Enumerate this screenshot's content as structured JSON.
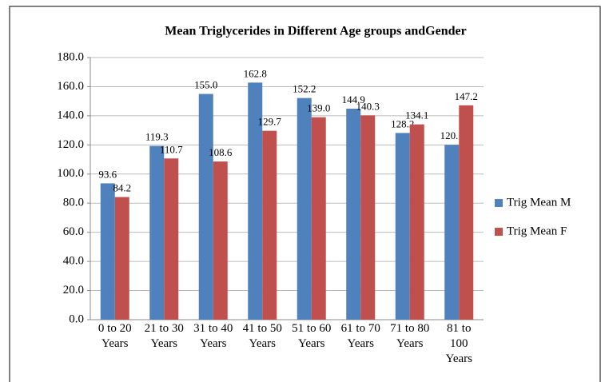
{
  "chart_data": {
    "type": "bar",
    "title": "Mean Triglycerides  in Different Age groups andGender",
    "categories": [
      "0  to 20 Years",
      "21  to 30 Years",
      "31  to 40 Years",
      "41  to 50 Years",
      "51  to 60 Years",
      "61  to 70 Years",
      "71  to 80 Years",
      "81  to 100 Years"
    ],
    "series": [
      {
        "name": "Trig Mean M",
        "color": "#4f81bd",
        "values": [
          93.6,
          119.3,
          155.0,
          162.8,
          152.2,
          144.9,
          128.2,
          120.1
        ],
        "value_labels": [
          "93.6",
          "119.3",
          "155.0",
          "162.8",
          "152.2",
          "144.9",
          "128.2",
          "120.1"
        ]
      },
      {
        "name": "Trig Mean F",
        "color": "#c0504d",
        "values": [
          84.2,
          110.7,
          108.6,
          129.7,
          139.0,
          140.3,
          134.1,
          147.2
        ],
        "value_labels": [
          "84.2",
          "110.7",
          "108.6",
          "129.7",
          "139.0",
          "140.3",
          "134.1",
          "147.2"
        ]
      }
    ],
    "ylim": [
      0,
      180
    ],
    "yticks": [
      {
        "value": 0,
        "label": "0.0"
      },
      {
        "value": 20,
        "label": "20.0"
      },
      {
        "value": 40,
        "label": "40.0"
      },
      {
        "value": 60,
        "label": "60.0"
      },
      {
        "value": 80,
        "label": "80.0"
      },
      {
        "value": 100,
        "label": "100.0"
      },
      {
        "value": 120,
        "label": "120.0"
      },
      {
        "value": 140,
        "label": "140.0"
      },
      {
        "value": 160,
        "label": "160.0"
      },
      {
        "value": 180,
        "label": "180.0"
      }
    ],
    "grid": true,
    "legend": "right"
  }
}
